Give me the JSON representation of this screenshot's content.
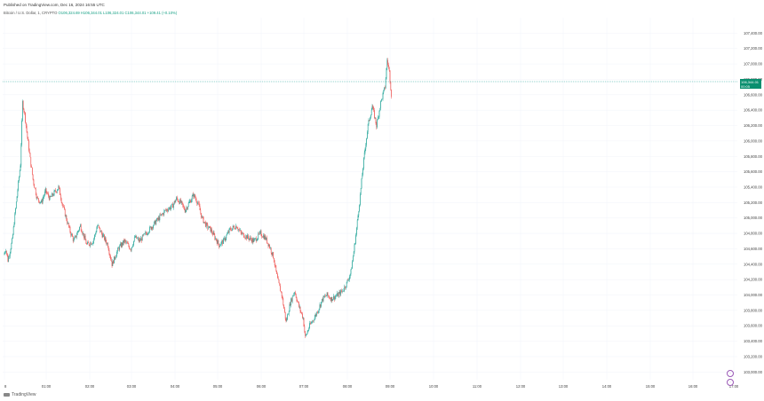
{
  "header": {
    "published": "Published on TradingView.com, Dec 16, 2024 16:55 UTC",
    "symbol": "Bitcoin / U.S. Dollar, 1, CRYPTO",
    "ohlc": "O106,324.69 H106,344.01 L106,324.01 C106,344.01 +109.41 (+0.10%)"
  },
  "current_price_label": "106,344.01",
  "current_price_time": "00:05",
  "footer": {
    "logo_text": "TradingView"
  },
  "icons": {
    "event_icon": "calendar-circle-icon",
    "event_icon_2": "flag-circle-icon"
  },
  "colors": {
    "up": "#26a69a",
    "down": "#ef5350",
    "badge": "#0a8f6f",
    "grid": "#f0f3fa"
  },
  "chart_data": {
    "type": "candlestick",
    "title": "",
    "xlabel": "",
    "ylabel": "",
    "ylim": [
      102900,
      107600
    ],
    "x_ticks": [
      "8",
      "01:00",
      "02:00",
      "03:00",
      "04:00",
      "05:00",
      "06:00",
      "07:00",
      "08:00",
      "09:00",
      "10:00",
      "11:00",
      "12:00",
      "13:00",
      "14:00",
      "15:00",
      "16:00",
      "17:00"
    ],
    "y_ticks": [
      103000,
      103200,
      103400,
      103600,
      103800,
      104000,
      104200,
      104400,
      104600,
      104800,
      105000,
      105200,
      105400,
      105600,
      105800,
      106000,
      106200,
      106400,
      106600,
      106800,
      107000,
      107200,
      107400
    ],
    "y_tick_labels": [
      "103,000.00",
      "103,200.00",
      "103,400.00",
      "103,600.00",
      "103,800.00",
      "104,000.00",
      "104,200.00",
      "104,400.00",
      "104,600.00",
      "104,800.00",
      "105,000.00",
      "105,200.00",
      "105,400.00",
      "105,600.00",
      "105,800.00",
      "106,000.00",
      "106,200.00",
      "106,400.00",
      "106,600.00",
      "106,800.00",
      "107,000.00",
      "107,200.00",
      "107,400.00"
    ],
    "price_path": [
      [
        0,
        104520
      ],
      [
        0.05,
        104600
      ],
      [
        0.1,
        104450
      ],
      [
        0.2,
        104700
      ],
      [
        0.3,
        105200
      ],
      [
        0.4,
        105700
      ],
      [
        0.45,
        106500
      ],
      [
        0.5,
        106350
      ],
      [
        0.6,
        105900
      ],
      [
        0.7,
        105500
      ],
      [
        0.8,
        105250
      ],
      [
        0.9,
        105200
      ],
      [
        1.0,
        105350
      ],
      [
        1.1,
        105250
      ],
      [
        1.3,
        105400
      ],
      [
        1.4,
        105150
      ],
      [
        1.55,
        104850
      ],
      [
        1.65,
        104700
      ],
      [
        1.8,
        104900
      ],
      [
        1.95,
        104650
      ],
      [
        2.1,
        104700
      ],
      [
        2.2,
        104900
      ],
      [
        2.35,
        104750
      ],
      [
        2.45,
        104650
      ],
      [
        2.55,
        104400
      ],
      [
        2.7,
        104600
      ],
      [
        2.85,
        104700
      ],
      [
        3.0,
        104600
      ],
      [
        3.1,
        104750
      ],
      [
        3.2,
        104700
      ],
      [
        3.35,
        104800
      ],
      [
        3.5,
        104900
      ],
      [
        3.65,
        105000
      ],
      [
        3.8,
        105100
      ],
      [
        3.95,
        105150
      ],
      [
        4.05,
        105250
      ],
      [
        4.15,
        105200
      ],
      [
        4.25,
        105100
      ],
      [
        4.35,
        105200
      ],
      [
        4.45,
        105300
      ],
      [
        4.55,
        105200
      ],
      [
        4.65,
        105000
      ],
      [
        4.75,
        104900
      ],
      [
        4.85,
        104850
      ],
      [
        4.95,
        104750
      ],
      [
        5.05,
        104650
      ],
      [
        5.15,
        104700
      ],
      [
        5.3,
        104850
      ],
      [
        5.45,
        104900
      ],
      [
        5.55,
        104800
      ],
      [
        5.7,
        104750
      ],
      [
        5.85,
        104700
      ],
      [
        6.0,
        104800
      ],
      [
        6.1,
        104750
      ],
      [
        6.2,
        104650
      ],
      [
        6.3,
        104500
      ],
      [
        6.4,
        104200
      ],
      [
        6.5,
        104000
      ],
      [
        6.6,
        103650
      ],
      [
        6.7,
        103900
      ],
      [
        6.8,
        104050
      ],
      [
        6.9,
        103850
      ],
      [
        7.0,
        103700
      ],
      [
        7.05,
        103450
      ],
      [
        7.15,
        103600
      ],
      [
        7.3,
        103750
      ],
      [
        7.45,
        103950
      ],
      [
        7.55,
        104000
      ],
      [
        7.65,
        103950
      ],
      [
        7.8,
        104000
      ],
      [
        7.9,
        104050
      ],
      [
        8.0,
        104150
      ],
      [
        8.1,
        104300
      ],
      [
        8.2,
        104700
      ],
      [
        8.3,
        105200
      ],
      [
        8.4,
        105750
      ],
      [
        8.5,
        106200
      ],
      [
        8.6,
        106450
      ],
      [
        8.7,
        106200
      ],
      [
        8.8,
        106500
      ],
      [
        8.9,
        106700
      ],
      [
        8.95,
        107050
      ],
      [
        9.0,
        106900
      ],
      [
        9.05,
        106600
      ]
    ]
  }
}
